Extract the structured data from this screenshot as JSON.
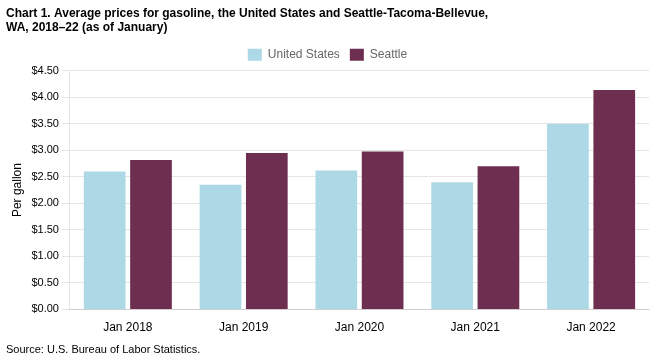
{
  "chart_data": {
    "type": "bar",
    "title": [
      "Chart 1. Average prices for gasoline, the United States and Seattle-Tacoma-Bellevue,",
      "WA, 2018–22 (as of January)"
    ],
    "ylabel": "Per gallon",
    "annotations": [
      "Source: U.S. Bureau of Labor Statistics."
    ],
    "categories": [
      "Jan 2018",
      "Jan 2019",
      "Jan 2020",
      "Jan 2021",
      "Jan 2022"
    ],
    "series": [
      {
        "name": "United States",
        "color": "#add8e6",
        "values": [
          2.6,
          2.35,
          2.62,
          2.4,
          3.5
        ]
      },
      {
        "name": "Seattle",
        "color": "#6d2e4f",
        "values": [
          2.82,
          2.95,
          2.98,
          2.7,
          4.14
        ]
      }
    ],
    "ylim": [
      0,
      4.5
    ],
    "yticks": [
      {
        "value": 0.0,
        "label": "$0.00"
      },
      {
        "value": 0.5,
        "label": "$0.50"
      },
      {
        "value": 1.0,
        "label": "$1.00"
      },
      {
        "value": 1.5,
        "label": "$1.50"
      },
      {
        "value": 2.0,
        "label": "$2.00"
      },
      {
        "value": 2.5,
        "label": "$2.50"
      },
      {
        "value": 3.0,
        "label": "$3.00"
      },
      {
        "value": 3.5,
        "label": "$3.50"
      },
      {
        "value": 4.0,
        "label": "$4.00"
      },
      {
        "value": 4.5,
        "label": "$4.50"
      }
    ],
    "grid": true,
    "legend": "top"
  }
}
